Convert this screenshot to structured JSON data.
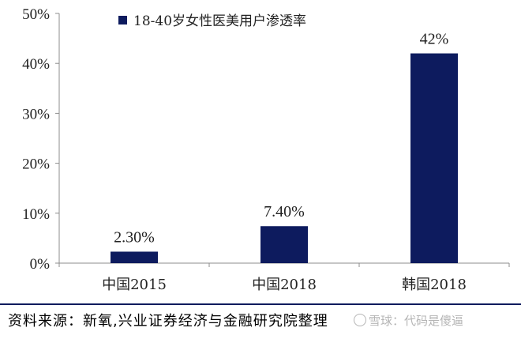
{
  "chart_data": {
    "type": "bar",
    "categories": [
      "中国2015",
      "中国2018",
      "韩国2018"
    ],
    "series": [
      {
        "name": "18-40岁女性医美用户渗透率",
        "values": [
          2.3,
          7.4,
          42
        ],
        "labels": [
          "2.30%",
          "7.40%",
          "42%"
        ]
      }
    ],
    "ylim": [
      0,
      50
    ],
    "yticks": [
      0,
      10,
      20,
      30,
      40,
      50
    ],
    "ytick_labels": [
      "0%",
      "10%",
      "20%",
      "30%",
      "40%",
      "50%"
    ],
    "ylabel": "",
    "xlabel": "",
    "title": "",
    "legend_position": "top-left",
    "grid": false,
    "colors": {
      "bar": "#0d1b5e",
      "axis": "#8c8c8c"
    }
  },
  "footer": {
    "source": "资料来源：新氧,兴业证券经济与金融研究院整理",
    "watermark": "雪球：代码是傻逼",
    "rule_color": "#0d1b5e"
  }
}
